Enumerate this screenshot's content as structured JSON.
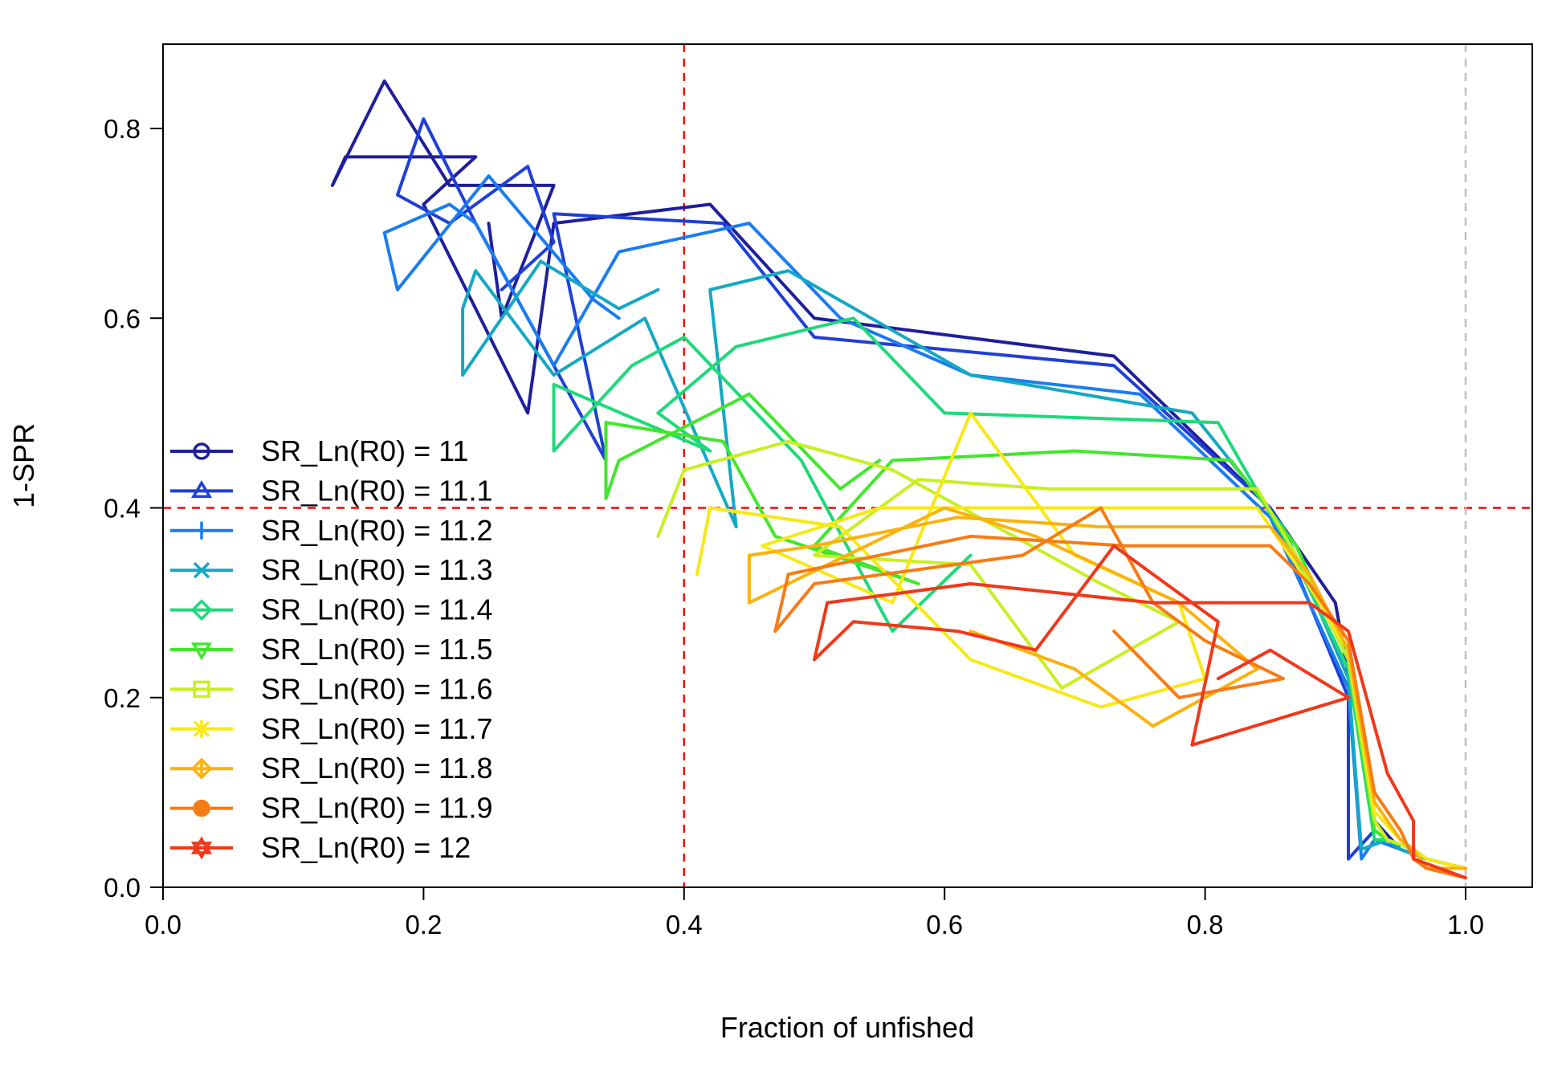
{
  "chart_data": {
    "type": "line",
    "xlabel": "Fraction of unfished",
    "ylabel": "1-SPR",
    "xlim": [
      0,
      1.05
    ],
    "ylim": [
      0,
      0.89
    ],
    "x_ticks": [
      "0.0",
      "0.2",
      "0.4",
      "0.6",
      "0.8",
      "1.0"
    ],
    "y_ticks": [
      "0.0",
      "0.2",
      "0.4",
      "0.6",
      "0.8"
    ],
    "reference_lines": {
      "vertical_red": 0.4,
      "horizontal_red": 0.4,
      "vertical_grey": 1.0,
      "red_color": "#ff0000",
      "grey_color": "#bfbfbf"
    },
    "legend_position": "left",
    "legend_prefix": "SR_Ln(R0) = ",
    "series": [
      {
        "name": "11",
        "color": "#1f1f9c",
        "marker": "circle",
        "points": [
          [
            1.0,
            0.02
          ],
          [
            0.97,
            0.03
          ],
          [
            0.95,
            0.04
          ],
          [
            0.93,
            0.07
          ],
          [
            0.92,
            0.15
          ],
          [
            0.9,
            0.3
          ],
          [
            0.85,
            0.4
          ],
          [
            0.73,
            0.56
          ],
          [
            0.5,
            0.6
          ],
          [
            0.42,
            0.72
          ],
          [
            0.3,
            0.7
          ],
          [
            0.28,
            0.5
          ],
          [
            0.2,
            0.72
          ],
          [
            0.24,
            0.77
          ],
          [
            0.14,
            0.77
          ],
          [
            0.13,
            0.74
          ],
          [
            0.17,
            0.85
          ],
          [
            0.22,
            0.74
          ],
          [
            0.3,
            0.74
          ],
          [
            0.26,
            0.6
          ],
          [
            0.25,
            0.7
          ]
        ]
      },
      {
        "name": "11.1",
        "color": "#1f3fd8",
        "marker": "triangle",
        "points": [
          [
            1.0,
            0.02
          ],
          [
            0.97,
            0.03
          ],
          [
            0.95,
            0.04
          ],
          [
            0.93,
            0.06
          ],
          [
            0.91,
            0.03
          ],
          [
            0.91,
            0.2
          ],
          [
            0.85,
            0.4
          ],
          [
            0.73,
            0.55
          ],
          [
            0.5,
            0.58
          ],
          [
            0.43,
            0.7
          ],
          [
            0.3,
            0.71
          ],
          [
            0.34,
            0.45
          ],
          [
            0.24,
            0.7
          ],
          [
            0.2,
            0.81
          ],
          [
            0.18,
            0.73
          ],
          [
            0.22,
            0.7
          ],
          [
            0.28,
            0.76
          ],
          [
            0.3,
            0.68
          ],
          [
            0.26,
            0.63
          ]
        ]
      },
      {
        "name": "11.2",
        "color": "#1a7cf0",
        "marker": "plus",
        "points": [
          [
            1.0,
            0.02
          ],
          [
            0.97,
            0.03
          ],
          [
            0.95,
            0.04
          ],
          [
            0.93,
            0.05
          ],
          [
            0.92,
            0.03
          ],
          [
            0.91,
            0.21
          ],
          [
            0.85,
            0.39
          ],
          [
            0.75,
            0.52
          ],
          [
            0.62,
            0.54
          ],
          [
            0.52,
            0.6
          ],
          [
            0.45,
            0.7
          ],
          [
            0.35,
            0.67
          ],
          [
            0.3,
            0.55
          ],
          [
            0.24,
            0.7
          ],
          [
            0.22,
            0.72
          ],
          [
            0.17,
            0.69
          ],
          [
            0.18,
            0.63
          ],
          [
            0.25,
            0.75
          ],
          [
            0.33,
            0.62
          ],
          [
            0.35,
            0.6
          ]
        ]
      },
      {
        "name": "11.3",
        "color": "#14a8c4",
        "marker": "x",
        "points": [
          [
            1.0,
            0.02
          ],
          [
            0.97,
            0.03
          ],
          [
            0.95,
            0.04
          ],
          [
            0.94,
            0.05
          ],
          [
            0.92,
            0.04
          ],
          [
            0.91,
            0.22
          ],
          [
            0.86,
            0.38
          ],
          [
            0.79,
            0.5
          ],
          [
            0.62,
            0.54
          ],
          [
            0.48,
            0.65
          ],
          [
            0.42,
            0.63
          ],
          [
            0.44,
            0.38
          ],
          [
            0.37,
            0.6
          ],
          [
            0.3,
            0.54
          ],
          [
            0.24,
            0.65
          ],
          [
            0.23,
            0.61
          ],
          [
            0.23,
            0.54
          ],
          [
            0.29,
            0.66
          ],
          [
            0.35,
            0.61
          ],
          [
            0.38,
            0.63
          ]
        ]
      },
      {
        "name": "11.4",
        "color": "#1ed97a",
        "marker": "diamond",
        "points": [
          [
            1.0,
            0.02
          ],
          [
            0.97,
            0.03
          ],
          [
            0.96,
            0.04
          ],
          [
            0.94,
            0.05
          ],
          [
            0.93,
            0.05
          ],
          [
            0.91,
            0.23
          ],
          [
            0.86,
            0.37
          ],
          [
            0.81,
            0.49
          ],
          [
            0.6,
            0.5
          ],
          [
            0.53,
            0.6
          ],
          [
            0.44,
            0.57
          ],
          [
            0.38,
            0.5
          ],
          [
            0.42,
            0.46
          ],
          [
            0.3,
            0.53
          ],
          [
            0.3,
            0.46
          ],
          [
            0.36,
            0.55
          ],
          [
            0.4,
            0.58
          ],
          [
            0.49,
            0.45
          ],
          [
            0.56,
            0.27
          ],
          [
            0.62,
            0.35
          ]
        ]
      },
      {
        "name": "11.5",
        "color": "#42e62c",
        "marker": "triangle-down",
        "points": [
          [
            1.0,
            0.02
          ],
          [
            0.97,
            0.03
          ],
          [
            0.96,
            0.04
          ],
          [
            0.94,
            0.05
          ],
          [
            0.93,
            0.06
          ],
          [
            0.91,
            0.24
          ],
          [
            0.87,
            0.36
          ],
          [
            0.82,
            0.45
          ],
          [
            0.7,
            0.46
          ],
          [
            0.56,
            0.45
          ],
          [
            0.5,
            0.36
          ],
          [
            0.58,
            0.32
          ],
          [
            0.47,
            0.37
          ],
          [
            0.43,
            0.47
          ],
          [
            0.34,
            0.49
          ],
          [
            0.34,
            0.41
          ],
          [
            0.35,
            0.45
          ],
          [
            0.45,
            0.52
          ],
          [
            0.52,
            0.42
          ],
          [
            0.55,
            0.45
          ]
        ]
      },
      {
        "name": "11.6",
        "color": "#c8ef20",
        "marker": "square",
        "points": [
          [
            1.0,
            0.02
          ],
          [
            0.97,
            0.03
          ],
          [
            0.96,
            0.04
          ],
          [
            0.94,
            0.05
          ],
          [
            0.93,
            0.07
          ],
          [
            0.91,
            0.24
          ],
          [
            0.87,
            0.35
          ],
          [
            0.84,
            0.42
          ],
          [
            0.68,
            0.42
          ],
          [
            0.58,
            0.43
          ],
          [
            0.5,
            0.35
          ],
          [
            0.62,
            0.34
          ],
          [
            0.69,
            0.21
          ],
          [
            0.78,
            0.28
          ],
          [
            0.72,
            0.32
          ],
          [
            0.64,
            0.38
          ],
          [
            0.56,
            0.44
          ],
          [
            0.48,
            0.47
          ],
          [
            0.4,
            0.44
          ],
          [
            0.38,
            0.37
          ]
        ]
      },
      {
        "name": "11.7",
        "color": "#f7e816",
        "marker": "asterisk",
        "points": [
          [
            1.0,
            0.02
          ],
          [
            0.97,
            0.03
          ],
          [
            0.96,
            0.04
          ],
          [
            0.95,
            0.05
          ],
          [
            0.93,
            0.08
          ],
          [
            0.91,
            0.25
          ],
          [
            0.87,
            0.34
          ],
          [
            0.84,
            0.4
          ],
          [
            0.66,
            0.4
          ],
          [
            0.55,
            0.4
          ],
          [
            0.46,
            0.36
          ],
          [
            0.56,
            0.3
          ],
          [
            0.62,
            0.5
          ],
          [
            0.7,
            0.35
          ],
          [
            0.78,
            0.3
          ],
          [
            0.8,
            0.22
          ],
          [
            0.72,
            0.19
          ],
          [
            0.62,
            0.24
          ],
          [
            0.52,
            0.38
          ],
          [
            0.42,
            0.4
          ],
          [
            0.41,
            0.33
          ]
        ]
      },
      {
        "name": "11.8",
        "color": "#fbb20e",
        "marker": "diamond-plus",
        "points": [
          [
            1.0,
            0.02
          ],
          [
            0.97,
            0.02
          ],
          [
            0.96,
            0.04
          ],
          [
            0.95,
            0.05
          ],
          [
            0.93,
            0.09
          ],
          [
            0.91,
            0.25
          ],
          [
            0.88,
            0.33
          ],
          [
            0.85,
            0.38
          ],
          [
            0.72,
            0.38
          ],
          [
            0.61,
            0.39
          ],
          [
            0.5,
            0.36
          ],
          [
            0.45,
            0.35
          ],
          [
            0.45,
            0.3
          ],
          [
            0.6,
            0.4
          ],
          [
            0.67,
            0.37
          ],
          [
            0.78,
            0.3
          ],
          [
            0.84,
            0.23
          ],
          [
            0.76,
            0.17
          ],
          [
            0.7,
            0.23
          ],
          [
            0.62,
            0.27
          ]
        ]
      },
      {
        "name": "11.9",
        "color": "#f77b14",
        "marker": "circle-filled",
        "points": [
          [
            1.0,
            0.01
          ],
          [
            0.97,
            0.02
          ],
          [
            0.96,
            0.03
          ],
          [
            0.95,
            0.06
          ],
          [
            0.93,
            0.1
          ],
          [
            0.91,
            0.26
          ],
          [
            0.88,
            0.32
          ],
          [
            0.85,
            0.36
          ],
          [
            0.74,
            0.36
          ],
          [
            0.62,
            0.37
          ],
          [
            0.48,
            0.33
          ],
          [
            0.47,
            0.27
          ],
          [
            0.5,
            0.32
          ],
          [
            0.66,
            0.35
          ],
          [
            0.72,
            0.4
          ],
          [
            0.76,
            0.3
          ],
          [
            0.8,
            0.26
          ],
          [
            0.86,
            0.22
          ],
          [
            0.78,
            0.2
          ],
          [
            0.73,
            0.27
          ]
        ]
      },
      {
        "name": "12",
        "color": "#f0381a",
        "marker": "star-of-david",
        "points": [
          [
            1.0,
            0.01
          ],
          [
            0.98,
            0.02
          ],
          [
            0.96,
            0.03
          ],
          [
            0.96,
            0.07
          ],
          [
            0.94,
            0.12
          ],
          [
            0.91,
            0.27
          ],
          [
            0.88,
            0.3
          ],
          [
            0.84,
            0.3
          ],
          [
            0.76,
            0.3
          ],
          [
            0.62,
            0.32
          ],
          [
            0.51,
            0.3
          ],
          [
            0.5,
            0.24
          ],
          [
            0.53,
            0.28
          ],
          [
            0.61,
            0.27
          ],
          [
            0.67,
            0.25
          ],
          [
            0.73,
            0.36
          ],
          [
            0.81,
            0.28
          ],
          [
            0.79,
            0.15
          ],
          [
            0.91,
            0.2
          ],
          [
            0.85,
            0.25
          ],
          [
            0.81,
            0.22
          ]
        ]
      }
    ]
  }
}
